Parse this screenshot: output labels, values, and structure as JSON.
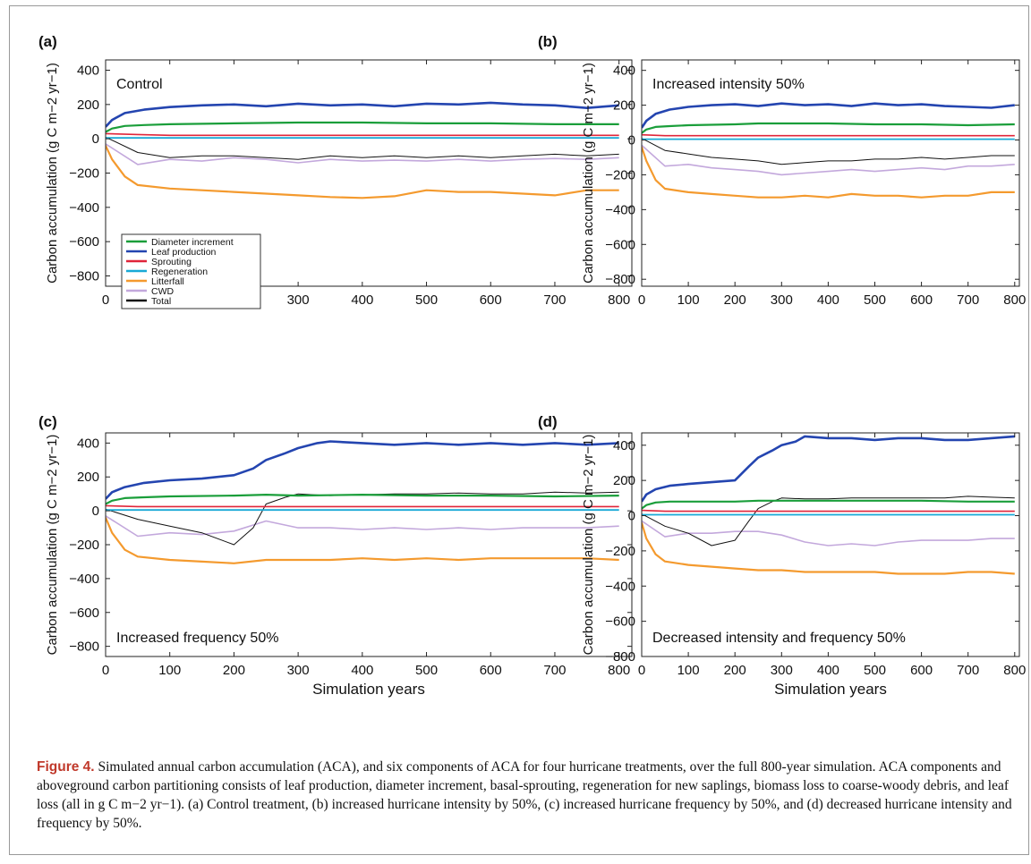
{
  "caption": {
    "label": "Figure 4.",
    "text": "Simulated annual carbon accumulation (ACA), and six components of ACA for four hurricane treatments, over the full 800-year simulation. ACA components and aboveground carbon partitioning consists of leaf production, diameter increment, basal-sprouting, regeneration for new saplings, biomass loss to coarse-woody debris, and leaf loss (all in g C m−2 yr−1). (a) Control treatment, (b) increased hurricane intensity by 50%, (c) increased hurricane frequency by 50%, and (d) decreased hurricane intensity and frequency by 50%."
  },
  "legend": [
    "Diameter increment",
    "Leaf production",
    "Sprouting",
    "Regeneration",
    "Litterfall",
    "CWD",
    "Total"
  ],
  "colors": {
    "Diameter increment": "#1a9e3a",
    "Leaf production": "#2445b0",
    "Sprouting": "#e0253a",
    "Regeneration": "#19a9d6",
    "Litterfall": "#f49a2e",
    "CWD": "#c3a8dc",
    "Total": "#111111"
  },
  "chart_data": [
    {
      "panel": "(a)",
      "annotation": "Control",
      "type": "line",
      "xlabel": "",
      "ylabel": "Carbon accumulation (g C m−2 yr−1)",
      "xlim": [
        0,
        820
      ],
      "ylim": [
        -860,
        460
      ],
      "xticks": [
        0,
        100,
        200,
        300,
        400,
        500,
        600,
        700,
        800
      ],
      "yticks": [
        400,
        200,
        0,
        -200,
        -400,
        -600,
        -800
      ],
      "series": [
        {
          "name": "Diameter increment",
          "x": [
            0,
            10,
            30,
            60,
            100,
            200,
            300,
            400,
            500,
            600,
            700,
            800
          ],
          "y": [
            40,
            60,
            75,
            80,
            85,
            90,
            95,
            95,
            90,
            90,
            85,
            85
          ]
        },
        {
          "name": "Leaf production",
          "x": [
            0,
            10,
            30,
            60,
            100,
            150,
            200,
            250,
            300,
            350,
            400,
            450,
            500,
            550,
            600,
            650,
            700,
            750,
            800
          ],
          "y": [
            70,
            110,
            150,
            170,
            185,
            195,
            200,
            190,
            205,
            195,
            200,
            190,
            205,
            200,
            210,
            200,
            195,
            180,
            195
          ]
        },
        {
          "name": "Sprouting",
          "x": [
            0,
            50,
            100,
            200,
            300,
            400,
            500,
            600,
            700,
            800
          ],
          "y": [
            30,
            25,
            20,
            20,
            20,
            20,
            20,
            20,
            20,
            20
          ]
        },
        {
          "name": "Regeneration",
          "x": [
            0,
            800
          ],
          "y": [
            5,
            5
          ]
        },
        {
          "name": "Litterfall",
          "x": [
            0,
            10,
            30,
            50,
            100,
            150,
            200,
            250,
            300,
            350,
            400,
            450,
            500,
            550,
            600,
            650,
            700,
            750,
            800
          ],
          "y": [
            -40,
            -120,
            -220,
            -270,
            -290,
            -300,
            -310,
            -320,
            -330,
            -340,
            -345,
            -335,
            -300,
            -310,
            -310,
            -320,
            -330,
            -300,
            -300
          ]
        },
        {
          "name": "CWD",
          "x": [
            0,
            50,
            100,
            150,
            200,
            250,
            300,
            350,
            400,
            450,
            500,
            550,
            600,
            650,
            700,
            750,
            800
          ],
          "y": [
            -30,
            -150,
            -120,
            -130,
            -110,
            -120,
            -140,
            -120,
            -130,
            -125,
            -130,
            -120,
            -130,
            -120,
            -115,
            -120,
            -110
          ]
        },
        {
          "name": "Total",
          "x": [
            0,
            50,
            100,
            150,
            200,
            250,
            300,
            350,
            400,
            450,
            500,
            550,
            600,
            650,
            700,
            750,
            800
          ],
          "y": [
            10,
            -80,
            -110,
            -100,
            -100,
            -110,
            -120,
            -100,
            -110,
            -100,
            -110,
            -100,
            -110,
            -100,
            -90,
            -100,
            -90
          ]
        }
      ]
    },
    {
      "panel": "(b)",
      "annotation": "Increased intensity 50%",
      "type": "line",
      "xlabel": "",
      "ylabel": "Carbon accumulation (g C m−2 yr−1)",
      "xlim": [
        0,
        810
      ],
      "ylim": [
        -840,
        460
      ],
      "xticks": [
        0,
        100,
        200,
        300,
        400,
        500,
        600,
        700,
        800
      ],
      "yticks": [
        400,
        200,
        0,
        -200,
        -400,
        -600,
        -800
      ],
      "series": [
        {
          "name": "Diameter increment",
          "x": [
            0,
            10,
            30,
            60,
            100,
            200,
            250,
            300,
            400,
            500,
            600,
            700,
            800
          ],
          "y": [
            40,
            60,
            75,
            80,
            85,
            90,
            95,
            95,
            95,
            90,
            90,
            85,
            90
          ]
        },
        {
          "name": "Leaf production",
          "x": [
            0,
            10,
            30,
            60,
            100,
            150,
            200,
            250,
            300,
            350,
            400,
            450,
            500,
            550,
            600,
            650,
            700,
            750,
            800
          ],
          "y": [
            70,
            110,
            150,
            175,
            190,
            200,
            205,
            195,
            210,
            200,
            205,
            195,
            210,
            200,
            205,
            195,
            190,
            185,
            200
          ]
        },
        {
          "name": "Sprouting",
          "x": [
            0,
            50,
            100,
            200,
            300,
            400,
            500,
            600,
            700,
            800
          ],
          "y": [
            30,
            25,
            25,
            25,
            25,
            25,
            25,
            25,
            25,
            25
          ]
        },
        {
          "name": "Regeneration",
          "x": [
            0,
            800
          ],
          "y": [
            5,
            5
          ]
        },
        {
          "name": "Litterfall",
          "x": [
            0,
            10,
            30,
            50,
            100,
            150,
            200,
            250,
            300,
            350,
            400,
            450,
            500,
            550,
            600,
            650,
            700,
            750,
            800
          ],
          "y": [
            -40,
            -120,
            -230,
            -280,
            -300,
            -310,
            -320,
            -330,
            -330,
            -320,
            -330,
            -310,
            -320,
            -320,
            -330,
            -320,
            -320,
            -300,
            -300
          ]
        },
        {
          "name": "CWD",
          "x": [
            0,
            50,
            100,
            150,
            200,
            250,
            300,
            350,
            400,
            450,
            500,
            550,
            600,
            650,
            700,
            750,
            800
          ],
          "y": [
            -30,
            -150,
            -140,
            -160,
            -170,
            -180,
            -200,
            -190,
            -180,
            -170,
            -180,
            -170,
            -160,
            -170,
            -150,
            -150,
            -140
          ]
        },
        {
          "name": "Total",
          "x": [
            0,
            50,
            100,
            150,
            200,
            250,
            300,
            350,
            400,
            450,
            500,
            550,
            600,
            650,
            700,
            750,
            800
          ],
          "y": [
            10,
            -60,
            -80,
            -100,
            -110,
            -120,
            -140,
            -130,
            -120,
            -120,
            -110,
            -110,
            -100,
            -110,
            -100,
            -90,
            -90
          ]
        }
      ]
    },
    {
      "panel": "(c)",
      "annotation": "Increased frequency 50%",
      "type": "line",
      "xlabel": "Simulation years",
      "ylabel": "Carbon accumulation (g C m−2 yr−1)",
      "xlim": [
        0,
        820
      ],
      "ylim": [
        -860,
        460
      ],
      "xticks": [
        0,
        100,
        200,
        300,
        400,
        500,
        600,
        700,
        800
      ],
      "yticks": [
        400,
        200,
        0,
        -200,
        -400,
        -600,
        -800
      ],
      "series": [
        {
          "name": "Diameter increment",
          "x": [
            0,
            10,
            30,
            60,
            100,
            200,
            250,
            300,
            400,
            500,
            600,
            700,
            800
          ],
          "y": [
            40,
            60,
            75,
            80,
            85,
            90,
            95,
            90,
            95,
            90,
            90,
            85,
            90
          ]
        },
        {
          "name": "Leaf production",
          "x": [
            0,
            10,
            30,
            60,
            100,
            150,
            200,
            230,
            250,
            280,
            300,
            330,
            350,
            400,
            450,
            500,
            550,
            600,
            650,
            700,
            750,
            800
          ],
          "y": [
            70,
            110,
            140,
            165,
            180,
            190,
            210,
            250,
            300,
            340,
            370,
            400,
            410,
            400,
            390,
            400,
            390,
            400,
            390,
            400,
            390,
            400
          ]
        },
        {
          "name": "Sprouting",
          "x": [
            0,
            50,
            100,
            200,
            300,
            400,
            500,
            600,
            700,
            800
          ],
          "y": [
            30,
            25,
            25,
            25,
            25,
            25,
            25,
            25,
            25,
            25
          ]
        },
        {
          "name": "Regeneration",
          "x": [
            0,
            800
          ],
          "y": [
            5,
            5
          ]
        },
        {
          "name": "Litterfall",
          "x": [
            0,
            10,
            30,
            50,
            100,
            150,
            200,
            250,
            300,
            350,
            400,
            450,
            500,
            550,
            600,
            650,
            700,
            750,
            800
          ],
          "y": [
            -40,
            -130,
            -230,
            -270,
            -290,
            -300,
            -310,
            -290,
            -290,
            -290,
            -280,
            -290,
            -280,
            -290,
            -280,
            -280,
            -280,
            -280,
            -290
          ]
        },
        {
          "name": "CWD",
          "x": [
            0,
            50,
            100,
            150,
            200,
            250,
            300,
            350,
            400,
            450,
            500,
            550,
            600,
            650,
            700,
            750,
            800
          ],
          "y": [
            -30,
            -150,
            -130,
            -140,
            -120,
            -60,
            -100,
            -100,
            -110,
            -100,
            -110,
            -100,
            -110,
            -100,
            -100,
            -100,
            -90
          ]
        },
        {
          "name": "Total",
          "x": [
            0,
            50,
            100,
            150,
            200,
            230,
            250,
            280,
            300,
            350,
            400,
            450,
            500,
            550,
            600,
            650,
            700,
            750,
            800
          ],
          "y": [
            10,
            -50,
            -90,
            -130,
            -200,
            -100,
            40,
            80,
            100,
            90,
            95,
            100,
            100,
            105,
            100,
            100,
            110,
            105,
            110
          ]
        }
      ]
    },
    {
      "panel": "(d)",
      "annotation": "Decreased intensity and frequency 50%",
      "type": "line",
      "xlabel": "Simulation years",
      "ylabel": "Carbon accumulation (g C m−2 yr−1)",
      "xlim": [
        0,
        810
      ],
      "ylim": [
        -800,
        470
      ],
      "xticks": [
        0,
        100,
        200,
        300,
        400,
        500,
        600,
        700,
        800
      ],
      "yticks": [
        400,
        200,
        0,
        -200,
        -400,
        -600,
        -800
      ],
      "series": [
        {
          "name": "Diameter increment",
          "x": [
            0,
            10,
            30,
            60,
            100,
            200,
            250,
            300,
            400,
            500,
            600,
            700,
            800
          ],
          "y": [
            40,
            60,
            75,
            80,
            80,
            80,
            85,
            85,
            85,
            85,
            85,
            80,
            80
          ]
        },
        {
          "name": "Leaf production",
          "x": [
            0,
            10,
            30,
            60,
            100,
            150,
            200,
            230,
            250,
            280,
            300,
            330,
            350,
            400,
            450,
            500,
            550,
            600,
            650,
            700,
            750,
            800
          ],
          "y": [
            80,
            120,
            150,
            170,
            180,
            190,
            200,
            280,
            330,
            370,
            400,
            420,
            450,
            440,
            440,
            430,
            440,
            440,
            430,
            430,
            440,
            450
          ]
        },
        {
          "name": "Sprouting",
          "x": [
            0,
            50,
            100,
            200,
            300,
            400,
            500,
            600,
            700,
            800
          ],
          "y": [
            30,
            25,
            25,
            25,
            25,
            25,
            25,
            25,
            25,
            25
          ]
        },
        {
          "name": "Regeneration",
          "x": [
            0,
            800
          ],
          "y": [
            5,
            5
          ]
        },
        {
          "name": "Litterfall",
          "x": [
            0,
            10,
            30,
            50,
            100,
            150,
            200,
            250,
            300,
            350,
            400,
            450,
            500,
            550,
            600,
            650,
            700,
            750,
            800
          ],
          "y": [
            -40,
            -130,
            -220,
            -260,
            -280,
            -290,
            -300,
            -310,
            -310,
            -320,
            -320,
            -320,
            -320,
            -330,
            -330,
            -330,
            -320,
            -320,
            -330
          ]
        },
        {
          "name": "CWD",
          "x": [
            0,
            50,
            100,
            150,
            200,
            250,
            300,
            350,
            400,
            450,
            500,
            550,
            600,
            650,
            700,
            750,
            800
          ],
          "y": [
            -30,
            -120,
            -100,
            -100,
            -90,
            -90,
            -110,
            -150,
            -170,
            -160,
            -170,
            -150,
            -140,
            -140,
            -140,
            -130,
            -130
          ]
        },
        {
          "name": "Total",
          "x": [
            0,
            50,
            100,
            150,
            200,
            230,
            250,
            280,
            300,
            350,
            400,
            450,
            500,
            550,
            600,
            650,
            700,
            750,
            800
          ],
          "y": [
            10,
            -60,
            -100,
            -170,
            -140,
            -30,
            40,
            80,
            100,
            95,
            95,
            100,
            100,
            100,
            100,
            100,
            110,
            105,
            100
          ]
        }
      ]
    }
  ]
}
